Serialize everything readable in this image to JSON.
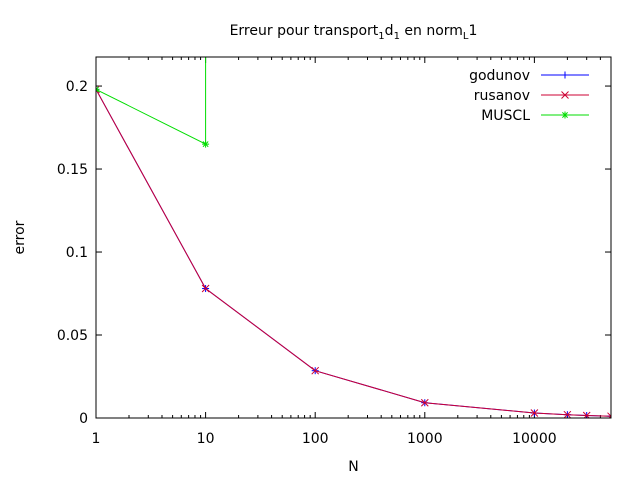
{
  "chart_data": {
    "type": "line",
    "title": {
      "parts": [
        {
          "text": "Erreur pour transport",
          "sub": false
        },
        {
          "text": "1",
          "sub": true
        },
        {
          "text": "d",
          "sub": false
        },
        {
          "text": "1",
          "sub": true
        },
        {
          "text": " en norm",
          "sub": false
        },
        {
          "text": "L",
          "sub": true
        },
        {
          "text": "1",
          "sub": false
        }
      ]
    },
    "xlabel": "N",
    "ylabel": "error",
    "xscale": "log",
    "xlim": [
      1,
      50000
    ],
    "ylim": [
      0,
      0.2175
    ],
    "xticks": [
      {
        "value": 1,
        "label": "1"
      },
      {
        "value": 10,
        "label": "10"
      },
      {
        "value": 100,
        "label": "100"
      },
      {
        "value": 1000,
        "label": "1000"
      },
      {
        "value": 10000,
        "label": "10000"
      }
    ],
    "yticks": [
      {
        "value": 0,
        "label": "0"
      },
      {
        "value": 0.05,
        "label": "0.05"
      },
      {
        "value": 0.1,
        "label": "0.1"
      },
      {
        "value": 0.15,
        "label": "0.15"
      },
      {
        "value": 0.2,
        "label": "0.2"
      }
    ],
    "legend": "top-right",
    "series": [
      {
        "name": "godunov",
        "color": "#0000ff",
        "marker": "plus",
        "x": [
          1,
          10,
          100,
          1000,
          10000,
          20000,
          30000,
          50000
        ],
        "y": [
          0.198,
          0.078,
          0.0285,
          0.0092,
          0.003,
          0.002,
          0.0015,
          0.0011
        ]
      },
      {
        "name": "rusanov",
        "color": "#cc0033",
        "marker": "cross",
        "x": [
          1,
          10,
          100,
          1000,
          10000,
          20000,
          30000,
          50000
        ],
        "y": [
          0.198,
          0.078,
          0.0285,
          0.0092,
          0.003,
          0.002,
          0.0015,
          0.0011
        ]
      },
      {
        "name": "MUSCL",
        "color": "#00dd00",
        "marker": "star",
        "x": [
          1,
          10,
          10
        ],
        "y": [
          0.198,
          0.165,
          0.22
        ]
      }
    ]
  }
}
